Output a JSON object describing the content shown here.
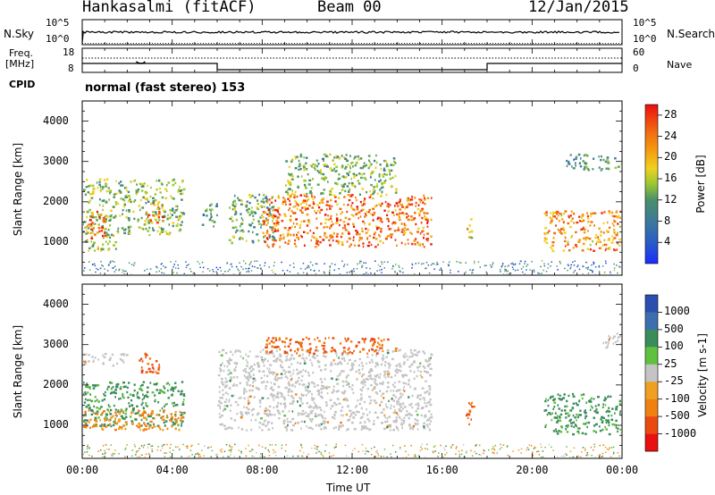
{
  "header": {
    "station": "Hankasalmi (fitACF)",
    "beam": "Beam 00",
    "date": "12/Jan/2015"
  },
  "top_panels": {
    "nsky_label": "N.Sky",
    "nsearch_label": "N.Search",
    "nsky_ticks": [
      "10^5",
      "10^0"
    ],
    "nsearch_ticks": [
      "10^5",
      "10^0"
    ],
    "freq_label_1": "Freq.",
    "freq_label_2": "[MHz]",
    "freq_ticks": [
      "18",
      "8"
    ],
    "nave_ticks": [
      "60",
      "0"
    ],
    "nave_label": "Nave",
    "cpid_label": "CPID",
    "cpid_text": "normal (fast stereo) 153"
  },
  "chart_data": [
    {
      "type": "heatmap",
      "panel": "power",
      "xlabel": "Time UT",
      "ylabel": "Slant Range [km]",
      "x_ticks": [
        "00:00",
        "04:00",
        "08:00",
        "12:00",
        "16:00",
        "20:00",
        "00:00"
      ],
      "xlim_hours": [
        0,
        24
      ],
      "ylim": [
        180,
        4500
      ],
      "y_ticks": [
        1000,
        2000,
        3000,
        4000
      ],
      "colorbar_label": "Power [dB]",
      "colorbar_ticks": [
        4,
        8,
        12,
        16,
        20,
        24,
        28
      ],
      "colorbar_range": [
        0,
        30
      ],
      "scatter_regions": [
        {
          "t0": 0.0,
          "t1": 1.5,
          "r0": 800,
          "r1": 2600,
          "level": 14
        },
        {
          "t0": 0.2,
          "t1": 1.0,
          "r0": 1100,
          "r1": 1800,
          "level": 25
        },
        {
          "t0": 1.5,
          "t1": 4.5,
          "r0": 1200,
          "r1": 2600,
          "level": 13
        },
        {
          "t0": 2.8,
          "t1": 3.6,
          "r0": 1500,
          "r1": 2000,
          "level": 23
        },
        {
          "t0": 5.3,
          "t1": 6.0,
          "r0": 1400,
          "r1": 2000,
          "level": 10
        },
        {
          "t0": 6.5,
          "t1": 8.5,
          "r0": 1000,
          "r1": 2200,
          "level": 12
        },
        {
          "t0": 8.0,
          "t1": 15.5,
          "r0": 900,
          "r1": 2200,
          "level": 24
        },
        {
          "t0": 9.0,
          "t1": 14.0,
          "r0": 2200,
          "r1": 3200,
          "level": 13
        },
        {
          "t0": 17.0,
          "t1": 17.3,
          "r0": 1000,
          "r1": 1600,
          "level": 18
        },
        {
          "t0": 20.5,
          "t1": 24.0,
          "r0": 800,
          "r1": 1800,
          "level": 22
        },
        {
          "t0": 21.5,
          "t1": 24.0,
          "r0": 2800,
          "r1": 3200,
          "level": 10
        }
      ]
    },
    {
      "type": "heatmap",
      "panel": "velocity",
      "xlabel": "Time UT",
      "ylabel": "Slant Range [km]",
      "x_ticks": [
        "00:00",
        "04:00",
        "08:00",
        "12:00",
        "16:00",
        "20:00",
        "00:00"
      ],
      "xlim_hours": [
        0,
        24
      ],
      "ylim": [
        180,
        4500
      ],
      "y_ticks": [
        1000,
        2000,
        3000,
        4000
      ],
      "colorbar_label": "Velocity [m s-1]",
      "colorbar_ticks": [
        1000,
        500,
        100,
        25,
        -25,
        -100,
        -500,
        -1000
      ],
      "scatter_regions": [
        {
          "t0": 0.0,
          "t1": 4.5,
          "r0": 1000,
          "r1": 2100,
          "velocity": 120
        },
        {
          "t0": 0.0,
          "t1": 4.5,
          "r0": 900,
          "r1": 1400,
          "velocity": -80
        },
        {
          "t0": 0.0,
          "t1": 2.0,
          "r0": 2500,
          "r1": 2800,
          "velocity": 0
        },
        {
          "t0": 2.5,
          "t1": 3.5,
          "r0": 2300,
          "r1": 2800,
          "velocity": -400
        },
        {
          "t0": 6.0,
          "t1": 15.5,
          "r0": 900,
          "r1": 2900,
          "velocity": 0
        },
        {
          "t0": 8.0,
          "t1": 14.0,
          "r0": 2800,
          "r1": 3200,
          "velocity": -300
        },
        {
          "t0": 17.0,
          "t1": 17.4,
          "r0": 1000,
          "r1": 1600,
          "velocity": -300
        },
        {
          "t0": 20.5,
          "t1": 24.0,
          "r0": 800,
          "r1": 1800,
          "velocity": 100
        },
        {
          "t0": 23.0,
          "t1": 24.0,
          "r0": 2900,
          "r1": 3300,
          "velocity": 0
        }
      ]
    }
  ],
  "colors": {
    "power_scale": [
      "#1a2bff",
      "#2a5cc8",
      "#3d7a9a",
      "#4a8f6a",
      "#5aa35a",
      "#9ac830",
      "#f0d020",
      "#f5a010",
      "#f07010",
      "#f03a10",
      "#e81010"
    ],
    "velocity_scale": {
      "1000": "#2a4fb0",
      "500": "#3d6fae",
      "100": "#3a8c5a",
      "25": "#60c040",
      "0": "#c4c4c4",
      "-25": "#f0a020",
      "-100": "#f08010",
      "-500": "#ea4a10",
      "-1000": "#e81010"
    }
  }
}
